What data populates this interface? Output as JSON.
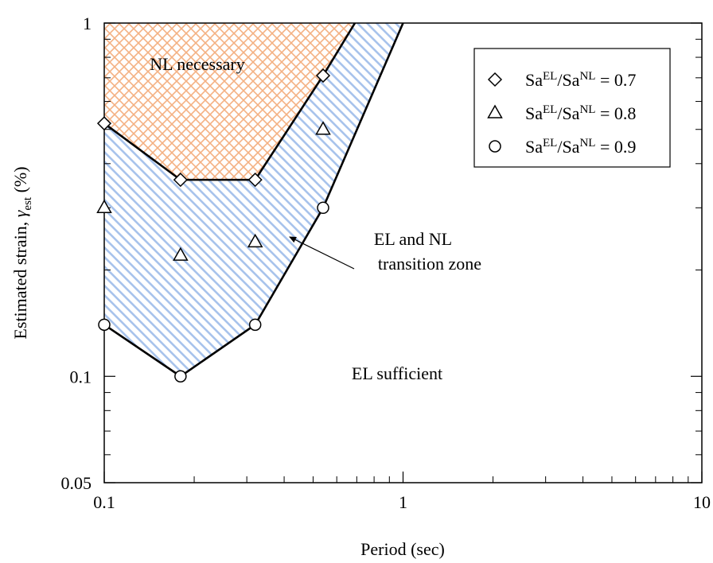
{
  "chart_data": {
    "type": "scatter",
    "log_x": true,
    "log_y": true,
    "xlabel": "Period (sec)",
    "ylabel": [
      "Estimated strain, ",
      "γ",
      "est",
      " (%)"
    ],
    "xlim": [
      0.1,
      10
    ],
    "xticks": [
      0.1,
      1,
      10
    ],
    "xminorticks": [
      0.2,
      0.3,
      0.4,
      0.5,
      0.6,
      0.7,
      0.8,
      0.9,
      2,
      3,
      4,
      5,
      6,
      7,
      8,
      9
    ],
    "ylim": [
      0.05,
      1
    ],
    "yticks": [
      0.05,
      0.1,
      1
    ],
    "yminorticks": [
      0.06,
      0.07,
      0.08,
      0.09,
      0.2,
      0.3,
      0.4,
      0.5,
      0.6,
      0.7,
      0.8,
      0.9
    ],
    "x": [
      0.1,
      0.18,
      0.32,
      0.54
    ],
    "series": [
      {
        "name": [
          "Sa",
          "EL",
          "/Sa",
          "NL",
          " = 0.7"
        ],
        "marker": "diamond",
        "color": "#000000",
        "values": [
          0.52,
          0.36,
          0.36,
          0.71
        ]
      },
      {
        "name": [
          "Sa",
          "EL",
          "/Sa",
          "NL",
          " = 0.8"
        ],
        "marker": "triangle",
        "color": "#000000",
        "values": [
          0.3,
          0.22,
          0.24,
          0.5
        ]
      },
      {
        "name": [
          "Sa",
          "EL",
          "/Sa",
          "NL",
          " = 0.9"
        ],
        "marker": "circle",
        "color": "#000000",
        "values": [
          0.14,
          0.1,
          0.14,
          0.3
        ]
      }
    ],
    "boundaries": [
      {
        "x": [
          0.1,
          0.18,
          0.32,
          0.54,
          0.69
        ],
        "values": [
          0.52,
          0.36,
          0.36,
          0.71,
          1
        ],
        "color": "#000000",
        "fill": "#f4b183"
      },
      {
        "x": [
          0.1,
          0.18,
          0.32,
          0.54,
          1
        ],
        "values": [
          0.14,
          0.1,
          0.14,
          0.3,
          1
        ],
        "color": "#000000",
        "fill": "#a8c3ec"
      }
    ],
    "annotations": [
      "NL necessary",
      "EL and NL",
      "transition zone",
      "EL sufficient"
    ],
    "legend": "upper right"
  }
}
